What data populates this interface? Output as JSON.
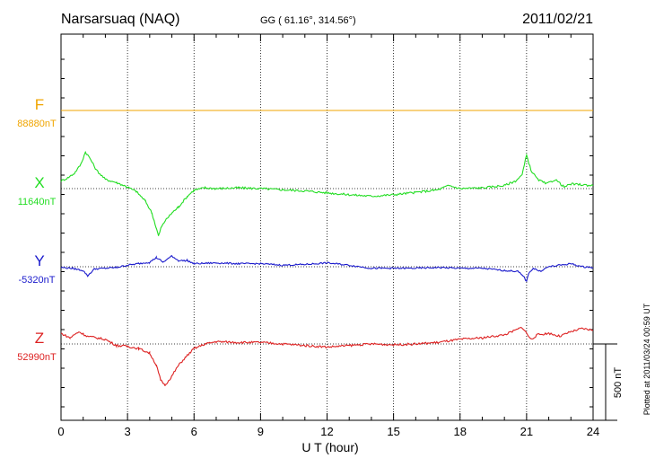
{
  "header": {
    "station": "Narsarsuaq (NAQ)",
    "coords": "GG ( 61.16°, 314.56°)",
    "date": "2011/02/21"
  },
  "footer": {
    "plotted": "Plotted at 2011/03/24 00:59 UT"
  },
  "chart_data": {
    "type": "line",
    "xlabel": "U T (hour)",
    "xlim": [
      0,
      24
    ],
    "xticks": [
      "0",
      "3",
      "6",
      "9",
      "12",
      "15",
      "18",
      "21",
      "24"
    ],
    "scale_bar": {
      "label": "500 nT",
      "value_nT": 500
    },
    "grid": true,
    "series": [
      {
        "name": "F",
        "baseline_label": "88880nT",
        "color": "#f0a500",
        "baseline": 88880,
        "x": [
          0,
          3,
          6,
          9,
          12,
          15,
          18,
          21,
          24
        ],
        "values": [
          88880,
          88880,
          88880,
          88880,
          88880,
          88880,
          88880,
          88880,
          88880
        ]
      },
      {
        "name": "X",
        "baseline_label": "11640nT",
        "color": "#22dd22",
        "baseline": 11640,
        "x": [
          0,
          0.3,
          0.6,
          0.9,
          1.1,
          1.3,
          1.6,
          2.0,
          2.5,
          3.0,
          3.4,
          3.8,
          4.1,
          4.3,
          4.4,
          4.5,
          4.7,
          5.0,
          5.3,
          5.7,
          6.0,
          6.5,
          7.0,
          8.0,
          9.0,
          10.0,
          11.0,
          12.0,
          13.0,
          14.0,
          15.0,
          16.0,
          17.0,
          17.5,
          18.0,
          19.0,
          20.0,
          20.5,
          20.8,
          21.0,
          21.2,
          21.5,
          21.9,
          22.3,
          22.7,
          23.0,
          23.5,
          24.0
        ],
        "values": [
          11690,
          11710,
          11740,
          11800,
          11880,
          11840,
          11760,
          11700,
          11680,
          11650,
          11620,
          11560,
          11480,
          11380,
          11330,
          11380,
          11430,
          11480,
          11520,
          11590,
          11630,
          11645,
          11640,
          11645,
          11640,
          11632,
          11625,
          11612,
          11600,
          11590,
          11600,
          11615,
          11632,
          11660,
          11640,
          11645,
          11660,
          11690,
          11730,
          11860,
          11760,
          11700,
          11670,
          11700,
          11650,
          11670,
          11665,
          11660
        ]
      },
      {
        "name": "Y",
        "baseline_label": "-5320nT",
        "color": "#1a1acc",
        "baseline": -5320,
        "x": [
          0,
          0.5,
          1.0,
          1.2,
          1.5,
          2.0,
          2.5,
          3.0,
          3.5,
          4.0,
          4.3,
          4.6,
          5.0,
          5.3,
          5.7,
          6.0,
          7.0,
          8.0,
          9.0,
          10.0,
          11.0,
          12.0,
          13.0,
          14.0,
          15.0,
          16.0,
          17.0,
          18.0,
          19.0,
          20.0,
          20.6,
          20.9,
          21.0,
          21.1,
          21.3,
          21.6,
          22.0,
          22.5,
          23.0,
          23.5,
          24.0
        ],
        "values": [
          -5325,
          -5330,
          -5345,
          -5380,
          -5335,
          -5330,
          -5325,
          -5310,
          -5300,
          -5290,
          -5260,
          -5290,
          -5250,
          -5280,
          -5280,
          -5300,
          -5295,
          -5300,
          -5300,
          -5310,
          -5305,
          -5295,
          -5310,
          -5330,
          -5330,
          -5330,
          -5325,
          -5330,
          -5330,
          -5345,
          -5350,
          -5390,
          -5420,
          -5360,
          -5330,
          -5350,
          -5320,
          -5310,
          -5300,
          -5320,
          -5325
        ]
      },
      {
        "name": "Z",
        "baseline_label": "52990nT",
        "color": "#dd2222",
        "baseline": 52990,
        "x": [
          0,
          0.4,
          0.8,
          1.2,
          1.6,
          2.0,
          2.5,
          3.0,
          3.5,
          4.0,
          4.3,
          4.5,
          4.7,
          5.0,
          5.3,
          5.6,
          6.0,
          6.5,
          7.0,
          8.0,
          9.0,
          10.0,
          11.0,
          12.0,
          13.0,
          14.0,
          15.0,
          16.0,
          17.0,
          18.0,
          19.0,
          20.0,
          20.5,
          20.8,
          21.0,
          21.2,
          21.5,
          22.0,
          22.5,
          23.0,
          23.5,
          24.0
        ],
        "values": [
          53060,
          53030,
          53070,
          53040,
          53030,
          53020,
          52980,
          52975,
          52960,
          52930,
          52850,
          52750,
          52720,
          52780,
          52850,
          52900,
          52960,
          52990,
          53005,
          53000,
          53000,
          52990,
          52980,
          52970,
          52980,
          52990,
          52985,
          52990,
          53000,
          53020,
          53030,
          53050,
          53080,
          53100,
          53060,
          53020,
          53050,
          53060,
          53040,
          53070,
          53090,
          53080
        ]
      }
    ]
  }
}
